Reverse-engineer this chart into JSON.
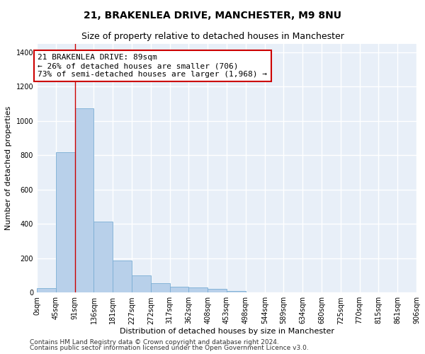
{
  "title_line1": "21, BRAKENLEA DRIVE, MANCHESTER, M9 8NU",
  "title_line2": "Size of property relative to detached houses in Manchester",
  "xlabel": "Distribution of detached houses by size in Manchester",
  "ylabel": "Number of detached properties",
  "bar_values": [
    25,
    820,
    1075,
    415,
    185,
    100,
    55,
    35,
    30,
    20,
    10,
    0,
    0,
    0,
    0,
    0,
    0,
    0,
    0,
    0
  ],
  "bin_edges": [
    0,
    45,
    91,
    136,
    181,
    227,
    272,
    317,
    362,
    408,
    453,
    498,
    544,
    589,
    634,
    680,
    725,
    770,
    815,
    861,
    906
  ],
  "tick_labels": [
    "0sqm",
    "45sqm",
    "91sqm",
    "136sqm",
    "181sqm",
    "227sqm",
    "272sqm",
    "317sqm",
    "362sqm",
    "408sqm",
    "453sqm",
    "498sqm",
    "544sqm",
    "589sqm",
    "634sqm",
    "680sqm",
    "725sqm",
    "770sqm",
    "815sqm",
    "861sqm",
    "906sqm"
  ],
  "bar_color": "#b8d0ea",
  "bar_edge_color": "#7aadd4",
  "property_line_x": 91,
  "property_line_color": "#cc0000",
  "annotation_text": "21 BRAKENLEA DRIVE: 89sqm\n← 26% of detached houses are smaller (706)\n73% of semi-detached houses are larger (1,968) →",
  "annotation_box_color": "#ffffff",
  "annotation_box_edge_color": "#cc0000",
  "ylim": [
    0,
    1450
  ],
  "yticks": [
    0,
    200,
    400,
    600,
    800,
    1000,
    1200,
    1400
  ],
  "footer_line1": "Contains HM Land Registry data © Crown copyright and database right 2024.",
  "footer_line2": "Contains public sector information licensed under the Open Government Licence v3.0.",
  "bg_color": "#ffffff",
  "plot_bg_color": "#e8eff8",
  "grid_color": "#ffffff",
  "title_fontsize": 10,
  "subtitle_fontsize": 9,
  "axis_label_fontsize": 8,
  "tick_fontsize": 7,
  "annotation_fontsize": 8,
  "footer_fontsize": 6.5
}
